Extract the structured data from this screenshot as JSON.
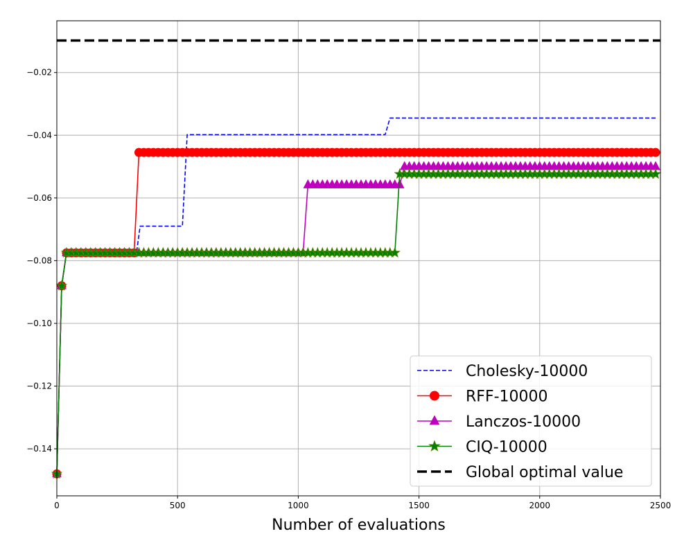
{
  "chart_data": {
    "type": "line",
    "title": "",
    "xlabel": "Number of evaluations",
    "ylabel": "",
    "xlim": [
      0,
      2500
    ],
    "ylim": [
      -0.155,
      -0.0035
    ],
    "xticks": [
      0,
      500,
      1000,
      1500,
      2000,
      2500
    ],
    "yticks": [
      -0.14,
      -0.12,
      -0.1,
      -0.08,
      -0.06,
      -0.04,
      -0.02
    ],
    "ytick_labels": [
      "−0.14",
      "−0.12",
      "−0.10",
      "−0.08",
      "−0.06",
      "−0.04",
      "−0.02"
    ],
    "grid": true,
    "legend_position": "bottom-right",
    "series": [
      {
        "name": "Cholesky-10000",
        "color": "#0000ff",
        "style": "dashed",
        "marker": "none",
        "steps": [
          [
            0,
            -0.148
          ],
          [
            20,
            -0.088
          ],
          [
            40,
            -0.0775
          ],
          [
            330,
            -0.0775
          ],
          [
            345,
            -0.069
          ],
          [
            520,
            -0.069
          ],
          [
            540,
            -0.0398
          ],
          [
            1360,
            -0.0398
          ],
          [
            1380,
            -0.0345
          ],
          [
            2480,
            -0.0345
          ]
        ]
      },
      {
        "name": "RFF-10000",
        "color": "#ff0000",
        "style": "solid",
        "marker": "circle",
        "steps": [
          [
            0,
            -0.148
          ],
          [
            20,
            -0.088
          ],
          [
            40,
            -0.0775
          ],
          [
            320,
            -0.0775
          ],
          [
            340,
            -0.0455
          ],
          [
            2480,
            -0.0455
          ]
        ]
      },
      {
        "name": "Lanczos-10000",
        "color": "#bf00bf",
        "style": "solid",
        "marker": "triangle",
        "steps": [
          [
            0,
            -0.148
          ],
          [
            20,
            -0.088
          ],
          [
            40,
            -0.0775
          ],
          [
            1020,
            -0.0775
          ],
          [
            1040,
            -0.0558
          ],
          [
            1420,
            -0.0558
          ],
          [
            1440,
            -0.05
          ],
          [
            2480,
            -0.05
          ]
        ]
      },
      {
        "name": "CIQ-10000",
        "color": "#008000",
        "style": "solid",
        "marker": "star",
        "steps": [
          [
            0,
            -0.148
          ],
          [
            20,
            -0.088
          ],
          [
            40,
            -0.0775
          ],
          [
            1400,
            -0.0775
          ],
          [
            1420,
            -0.0524
          ],
          [
            2480,
            -0.0524
          ]
        ]
      },
      {
        "name": "Global optimal value",
        "color": "#000000",
        "style": "thick-dashed",
        "marker": "none",
        "y": -0.0098
      }
    ]
  }
}
